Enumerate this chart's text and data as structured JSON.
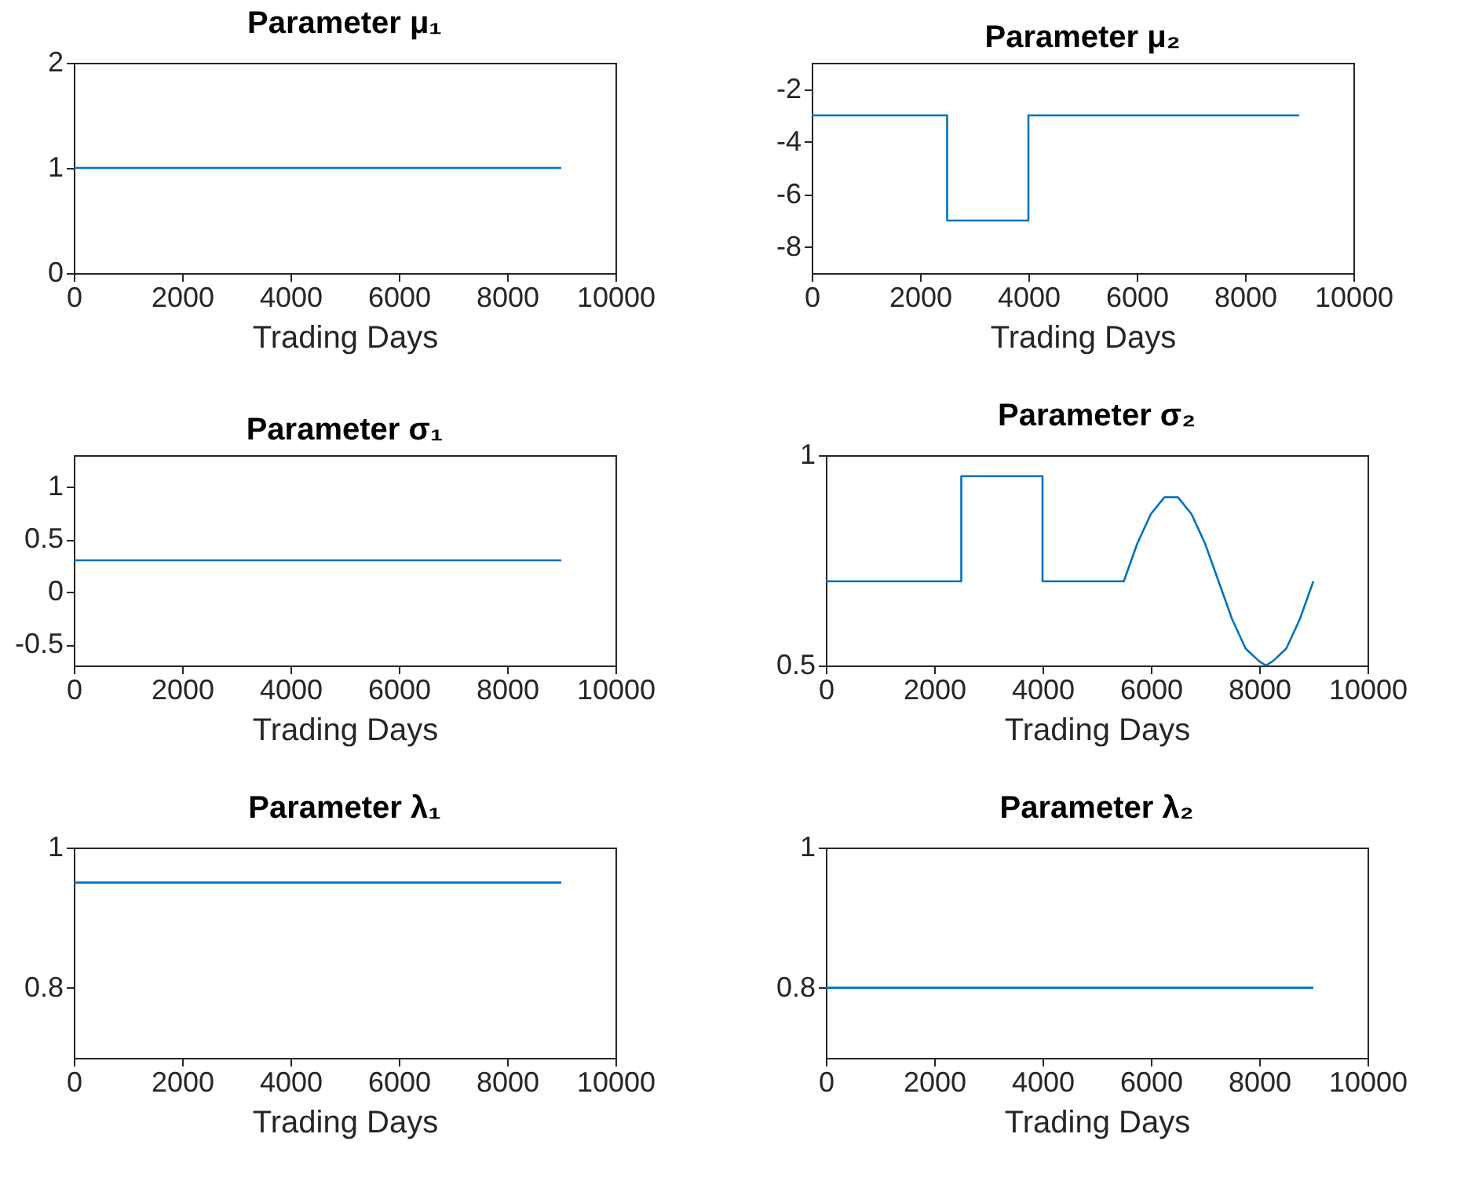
{
  "chart_data": [
    {
      "type": "line",
      "title": "Parameter μ₁",
      "xlabel": "Trading Days",
      "x": [
        0,
        9000
      ],
      "values": [
        1,
        1
      ],
      "color": "#0072bd",
      "xlim": [
        0,
        10000
      ],
      "xticks": [
        0,
        2000,
        4000,
        6000,
        8000,
        10000
      ],
      "ylim": [
        0,
        2
      ],
      "yticks": [
        0,
        1,
        2
      ],
      "grid": false
    },
    {
      "type": "line",
      "title": "Parameter μ₂",
      "xlabel": "Trading Days",
      "x": [
        0,
        2500,
        2500,
        4000,
        4000,
        9000
      ],
      "values": [
        -3,
        -3,
        -7,
        -7,
        -3,
        -3
      ],
      "color": "#0072bd",
      "xlim": [
        0,
        10000
      ],
      "xticks": [
        0,
        2000,
        4000,
        6000,
        8000,
        10000
      ],
      "ylim": [
        -9,
        -1
      ],
      "yticks": [
        -8,
        -6,
        -4,
        -2
      ],
      "grid": false
    },
    {
      "type": "line",
      "title": "Parameter σ₁",
      "xlabel": "Trading Days",
      "x": [
        0,
        9000
      ],
      "values": [
        0.3,
        0.3
      ],
      "color": "#0072bd",
      "xlim": [
        0,
        10000
      ],
      "xticks": [
        0,
        2000,
        4000,
        6000,
        8000,
        10000
      ],
      "ylim": [
        -0.7,
        1.3
      ],
      "yticks": [
        -0.5,
        0,
        0.5,
        1
      ],
      "grid": false
    },
    {
      "type": "line",
      "title": "Parameter σ₂",
      "xlabel": "Trading Days",
      "x": [
        0,
        2500,
        2500,
        4000,
        4000,
        5500,
        5750,
        6000,
        6250,
        6375,
        6500,
        6750,
        7000,
        7250,
        7500,
        7750,
        8000,
        8125,
        8250,
        8500,
        8750,
        9000
      ],
      "values": [
        0.7,
        0.7,
        0.95,
        0.95,
        0.7,
        0.7,
        0.79,
        0.86,
        0.9,
        0.9,
        0.9,
        0.86,
        0.79,
        0.7,
        0.61,
        0.54,
        0.51,
        0.5,
        0.51,
        0.54,
        0.61,
        0.7
      ],
      "color": "#0072bd",
      "xlim": [
        0,
        10000
      ],
      "xticks": [
        0,
        2000,
        4000,
        6000,
        8000,
        10000
      ],
      "ylim": [
        0.5,
        1
      ],
      "yticks": [
        0.5,
        1
      ],
      "grid": false
    },
    {
      "type": "line",
      "title": "Parameter λ₁",
      "xlabel": "Trading Days",
      "x": [
        0,
        9000
      ],
      "values": [
        0.95,
        0.95
      ],
      "color": "#0072bd",
      "xlim": [
        0,
        10000
      ],
      "xticks": [
        0,
        2000,
        4000,
        6000,
        8000,
        10000
      ],
      "ylim": [
        0.7,
        1
      ],
      "yticks": [
        0.8,
        1
      ],
      "grid": false
    },
    {
      "type": "line",
      "title": "Parameter λ₂",
      "xlabel": "Trading Days",
      "x": [
        0,
        9000
      ],
      "values": [
        0.8,
        0.8
      ],
      "color": "#0072bd",
      "xlim": [
        0,
        10000
      ],
      "xticks": [
        0,
        2000,
        4000,
        6000,
        8000,
        10000
      ],
      "ylim": [
        0.7,
        1
      ],
      "yticks": [
        0.8,
        1
      ],
      "grid": false
    }
  ]
}
